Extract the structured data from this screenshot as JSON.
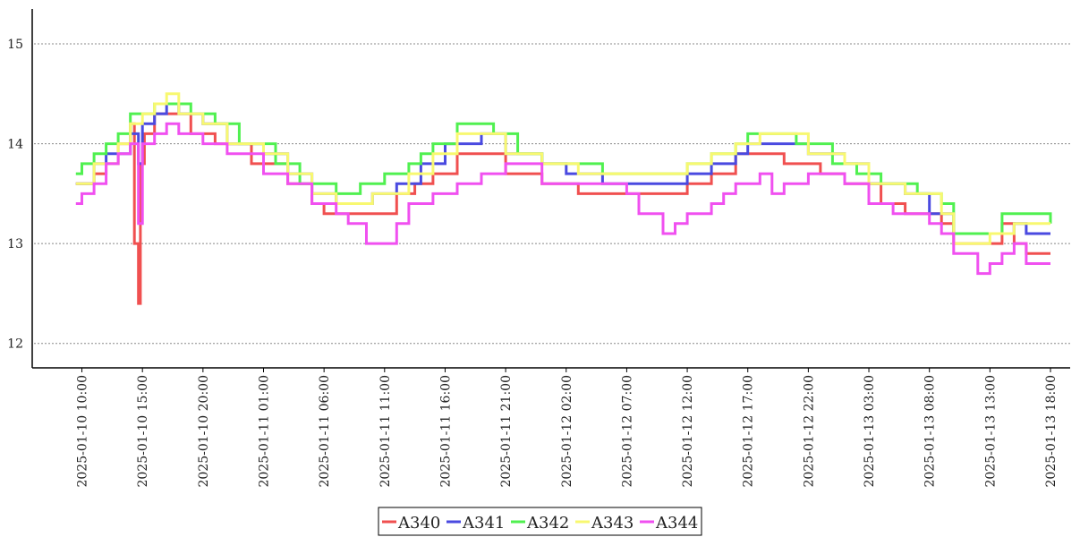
{
  "chart_data": {
    "type": "line",
    "title": "",
    "xlabel": "",
    "ylabel": "",
    "ylim": [
      11.8,
      15.35
    ],
    "y_ticks": [
      "12",
      "13",
      "14",
      "15"
    ],
    "grid": "horizontal dotted",
    "legend_placement": "bottom-center",
    "x_start": "2025-01-10 09:00",
    "x_end": "2025-01-13 18:00",
    "x_ticks": [
      "2025-01-10 10:00",
      "2025-01-10 15:00",
      "2025-01-10 20:00",
      "2025-01-11 01:00",
      "2025-01-11 06:00",
      "2025-01-11 11:00",
      "2025-01-11 16:00",
      "2025-01-11 21:00",
      "2025-01-12 02:00",
      "2025-01-12 07:00",
      "2025-01-12 12:00",
      "2025-01-12 17:00",
      "2025-01-12 22:00",
      "2025-01-13 03:00",
      "2025-01-13 08:00",
      "2025-01-13 13:00",
      "2025-01-13 18:00"
    ],
    "series": [
      {
        "name": "A340",
        "color": "#f05050",
        "x": [
          "2025-01-10 09:30",
          "2025-01-10 11:00",
          "2025-01-10 12:00",
          "2025-01-10 13:00",
          "2025-01-10 14:00",
          "2025-01-10 14:20",
          "2025-01-10 14:40",
          "2025-01-10 14:50",
          "2025-01-10 15:10",
          "2025-01-10 16:00",
          "2025-01-10 17:00",
          "2025-01-10 19:00",
          "2025-01-10 21:00",
          "2025-01-11 00:00",
          "2025-01-11 03:00",
          "2025-01-11 05:00",
          "2025-01-11 06:00",
          "2025-01-11 09:00",
          "2025-01-11 12:00",
          "2025-01-11 13:30",
          "2025-01-11 15:00",
          "2025-01-11 17:00",
          "2025-01-11 21:00",
          "2025-01-12 00:00",
          "2025-01-12 03:00",
          "2025-01-12 12:00",
          "2025-01-12 14:00",
          "2025-01-12 16:00",
          "2025-01-12 20:00",
          "2025-01-12 23:00",
          "2025-01-13 01:00",
          "2025-01-13 04:00",
          "2025-01-13 06:00",
          "2025-01-13 09:00",
          "2025-01-13 10:00",
          "2025-01-13 13:00",
          "2025-01-13 14:00",
          "2025-01-13 15:00",
          "2025-01-13 16:00",
          "2025-01-13 18:00"
        ],
        "y": [
          13.6,
          13.7,
          13.8,
          14.0,
          14.2,
          13.0,
          12.4,
          13.8,
          14.1,
          14.3,
          14.3,
          14.1,
          14.0,
          13.8,
          13.6,
          13.4,
          13.3,
          13.3,
          13.5,
          13.6,
          13.7,
          13.9,
          13.7,
          13.6,
          13.5,
          13.6,
          13.7,
          13.9,
          13.8,
          13.7,
          13.6,
          13.4,
          13.3,
          13.2,
          13.0,
          13.0,
          13.2,
          13.0,
          12.9,
          12.9
        ]
      },
      {
        "name": "A341",
        "color": "#4a4ae0",
        "x": [
          "2025-01-10 09:30",
          "2025-01-10 11:00",
          "2025-01-10 12:00",
          "2025-01-10 14:00",
          "2025-01-10 14:40",
          "2025-01-10 15:00",
          "2025-01-10 16:00",
          "2025-01-10 17:00",
          "2025-01-10 18:00",
          "2025-01-10 20:00",
          "2025-01-10 22:00",
          "2025-01-11 01:00",
          "2025-01-11 03:00",
          "2025-01-11 05:00",
          "2025-01-11 07:00",
          "2025-01-11 10:00",
          "2025-01-11 12:00",
          "2025-01-11 14:00",
          "2025-01-11 16:00",
          "2025-01-11 19:00",
          "2025-01-11 21:00",
          "2025-01-12 00:00",
          "2025-01-12 02:00",
          "2025-01-12 05:00",
          "2025-01-12 12:00",
          "2025-01-12 14:00",
          "2025-01-12 16:00",
          "2025-01-12 17:00",
          "2025-01-12 22:00",
          "2025-01-13 01:00",
          "2025-01-13 03:00",
          "2025-01-13 06:00",
          "2025-01-13 08:00",
          "2025-01-13 10:00",
          "2025-01-13 13:00",
          "2025-01-13 15:00",
          "2025-01-13 16:00",
          "2025-01-13 18:00"
        ],
        "y": [
          13.6,
          13.8,
          13.9,
          14.1,
          13.8,
          14.2,
          14.3,
          14.4,
          14.3,
          14.2,
          14.0,
          13.9,
          13.7,
          13.5,
          13.4,
          13.5,
          13.6,
          13.8,
          14.0,
          14.1,
          13.9,
          13.8,
          13.7,
          13.6,
          13.7,
          13.8,
          13.9,
          14.0,
          13.9,
          13.8,
          13.6,
          13.5,
          13.3,
          13.1,
          13.1,
          13.2,
          13.1,
          13.1
        ]
      },
      {
        "name": "A342",
        "color": "#50f050",
        "x": [
          "2025-01-10 09:30",
          "2025-01-10 10:00",
          "2025-01-10 11:00",
          "2025-01-10 12:00",
          "2025-01-10 13:00",
          "2025-01-10 14:00",
          "2025-01-10 15:00",
          "2025-01-10 16:00",
          "2025-01-10 19:00",
          "2025-01-10 21:00",
          "2025-01-10 23:00",
          "2025-01-11 02:00",
          "2025-01-11 04:00",
          "2025-01-11 07:00",
          "2025-01-11 09:00",
          "2025-01-11 11:00",
          "2025-01-11 13:00",
          "2025-01-11 14:00",
          "2025-01-11 15:00",
          "2025-01-11 17:00",
          "2025-01-11 20:00",
          "2025-01-11 22:00",
          "2025-01-12 00:00",
          "2025-01-12 05:00",
          "2025-01-12 12:00",
          "2025-01-12 14:00",
          "2025-01-12 16:00",
          "2025-01-12 17:00",
          "2025-01-12 21:00",
          "2025-01-13 00:00",
          "2025-01-13 02:00",
          "2025-01-13 04:00",
          "2025-01-13 07:00",
          "2025-01-13 09:00",
          "2025-01-13 10:00",
          "2025-01-13 13:00",
          "2025-01-13 14:00",
          "2025-01-13 18:00"
        ],
        "y": [
          13.7,
          13.8,
          13.9,
          14.0,
          14.1,
          14.3,
          14.3,
          14.4,
          14.3,
          14.2,
          14.0,
          13.8,
          13.6,
          13.5,
          13.6,
          13.7,
          13.8,
          13.9,
          14.0,
          14.2,
          14.1,
          13.9,
          13.8,
          13.7,
          13.8,
          13.9,
          14.0,
          14.1,
          14.0,
          13.8,
          13.7,
          13.6,
          13.5,
          13.4,
          13.1,
          13.1,
          13.3,
          13.2
        ]
      },
      {
        "name": "A343",
        "color": "#f8f870",
        "x": [
          "2025-01-10 09:30",
          "2025-01-10 11:00",
          "2025-01-10 13:00",
          "2025-01-10 14:00",
          "2025-01-10 15:00",
          "2025-01-10 16:00",
          "2025-01-10 17:00",
          "2025-01-10 18:00",
          "2025-01-10 20:00",
          "2025-01-10 22:00",
          "2025-01-11 01:00",
          "2025-01-11 03:00",
          "2025-01-11 05:00",
          "2025-01-11 07:00",
          "2025-01-11 10:00",
          "2025-01-11 13:00",
          "2025-01-11 15:00",
          "2025-01-11 17:00",
          "2025-01-11 21:00",
          "2025-01-12 00:00",
          "2025-01-12 03:00",
          "2025-01-12 12:00",
          "2025-01-12 14:00",
          "2025-01-12 16:00",
          "2025-01-12 18:00",
          "2025-01-12 22:00",
          "2025-01-13 01:00",
          "2025-01-13 03:00",
          "2025-01-13 06:00",
          "2025-01-13 09:00",
          "2025-01-13 10:00",
          "2025-01-13 13:00",
          "2025-01-13 15:00",
          "2025-01-13 18:00"
        ],
        "y": [
          13.6,
          13.8,
          14.0,
          14.2,
          14.3,
          14.4,
          14.5,
          14.3,
          14.2,
          14.0,
          13.9,
          13.7,
          13.5,
          13.4,
          13.5,
          13.7,
          13.9,
          14.1,
          13.9,
          13.8,
          13.7,
          13.8,
          13.9,
          14.0,
          14.1,
          13.9,
          13.8,
          13.6,
          13.5,
          13.3,
          13.0,
          13.1,
          13.2,
          13.2
        ]
      },
      {
        "name": "A344",
        "color": "#f050f0",
        "x": [
          "2025-01-10 09:30",
          "2025-01-10 10:00",
          "2025-01-10 11:00",
          "2025-01-10 12:00",
          "2025-01-10 13:00",
          "2025-01-10 14:00",
          "2025-01-10 14:40",
          "2025-01-10 15:00",
          "2025-01-10 16:00",
          "2025-01-10 17:00",
          "2025-01-10 18:00",
          "2025-01-10 20:00",
          "2025-01-10 22:00",
          "2025-01-11 01:00",
          "2025-01-11 03:00",
          "2025-01-11 05:00",
          "2025-01-11 07:00",
          "2025-01-11 08:00",
          "2025-01-11 09:30",
          "2025-01-11 11:00",
          "2025-01-11 12:00",
          "2025-01-11 13:00",
          "2025-01-11 15:00",
          "2025-01-11 17:00",
          "2025-01-11 19:00",
          "2025-01-11 21:00",
          "2025-01-12 00:00",
          "2025-01-12 07:00",
          "2025-01-12 08:00",
          "2025-01-12 10:00",
          "2025-01-12 11:00",
          "2025-01-12 12:00",
          "2025-01-12 14:00",
          "2025-01-12 15:00",
          "2025-01-12 16:00",
          "2025-01-12 18:00",
          "2025-01-12 19:00",
          "2025-01-12 20:00",
          "2025-01-12 22:00",
          "2025-01-13 01:00",
          "2025-01-13 03:00",
          "2025-01-13 05:00",
          "2025-01-13 08:00",
          "2025-01-13 09:00",
          "2025-01-13 10:00",
          "2025-01-13 12:00",
          "2025-01-13 13:00",
          "2025-01-13 14:00",
          "2025-01-13 15:00",
          "2025-01-13 16:00",
          "2025-01-13 18:00"
        ],
        "y": [
          13.4,
          13.5,
          13.6,
          13.8,
          13.9,
          14.0,
          13.2,
          14.0,
          14.1,
          14.2,
          14.1,
          14.0,
          13.9,
          13.7,
          13.6,
          13.4,
          13.3,
          13.2,
          13.0,
          13.0,
          13.2,
          13.4,
          13.5,
          13.6,
          13.7,
          13.8,
          13.6,
          13.5,
          13.3,
          13.1,
          13.2,
          13.3,
          13.4,
          13.5,
          13.6,
          13.7,
          13.5,
          13.6,
          13.7,
          13.6,
          13.4,
          13.3,
          13.2,
          13.1,
          12.9,
          12.7,
          12.8,
          12.9,
          13.0,
          12.8,
          12.8
        ]
      }
    ]
  }
}
